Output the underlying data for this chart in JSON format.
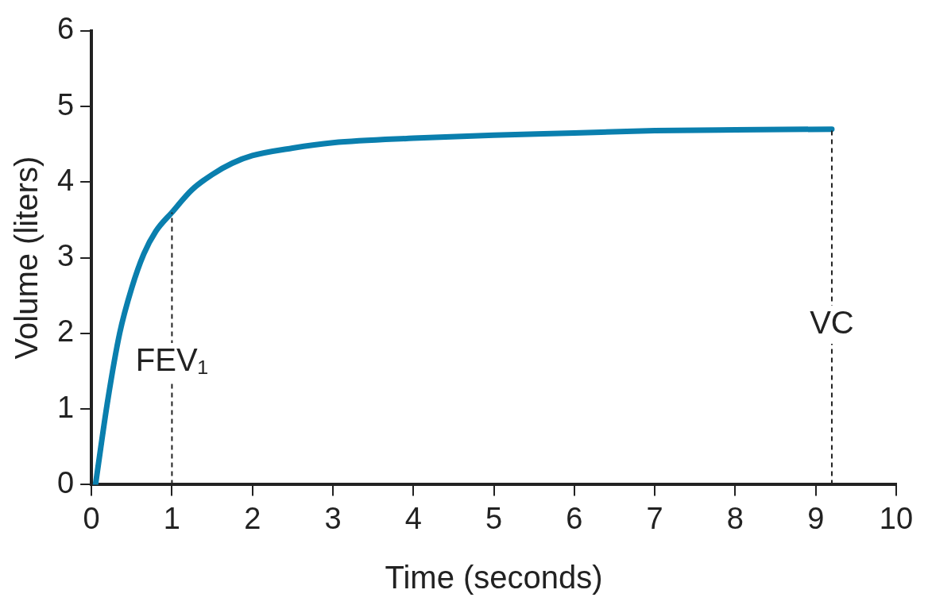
{
  "chart_data": {
    "type": "line",
    "xlabel": "Time (seconds)",
    "ylabel": "Volume (liters)",
    "x": [
      0.05,
      0.2,
      0.35,
      0.5,
      0.65,
      0.8,
      1,
      1.25,
      1.5,
      1.75,
      2,
      2.5,
      3,
      4,
      5,
      6,
      7,
      8,
      9.2
    ],
    "series": [
      {
        "color": "#0a7fae",
        "values": [
          0,
          1.1,
          2.0,
          2.6,
          3.05,
          3.35,
          3.6,
          3.9,
          4.1,
          4.25,
          4.35,
          4.45,
          4.52,
          4.58,
          4.62,
          4.65,
          4.68,
          4.69,
          4.7
        ]
      }
    ],
    "xlim": [
      0,
      10
    ],
    "ylim": [
      0,
      6
    ],
    "xticks": [
      0,
      1,
      2,
      3,
      4,
      5,
      6,
      7,
      8,
      9,
      10
    ],
    "yticks": [
      0,
      1,
      2,
      3,
      4,
      5,
      6
    ],
    "grid": false,
    "legend": false,
    "marker": "none",
    "line_style": "solid",
    "ref_lines": [
      {
        "axis": "x",
        "value": 1,
        "label": "FEV₁",
        "line_style": "dashed"
      },
      {
        "axis": "x",
        "value": 9.2,
        "label": "VC",
        "line_style": "dashed"
      }
    ]
  }
}
